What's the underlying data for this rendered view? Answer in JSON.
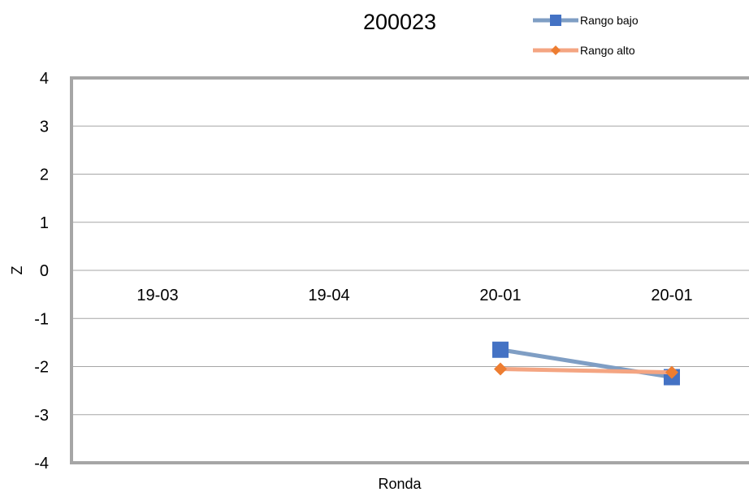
{
  "chart_data": {
    "type": "line",
    "title": "200023",
    "xlabel": "Ronda",
    "ylabel": "Z",
    "categories": [
      "19-03",
      "19-04",
      "20-01",
      "20-01"
    ],
    "ylim": [
      -4,
      4
    ],
    "yticks": [
      4,
      3,
      2,
      1,
      0,
      -1,
      -2,
      -3,
      -4
    ],
    "grid": true,
    "legend_position": "top-right",
    "series": [
      {
        "name": "Rango bajo",
        "values": [
          null,
          null,
          -1.65,
          -2.22
        ],
        "color": "#4472C4",
        "line_color": "#7F9EC4",
        "marker": "square"
      },
      {
        "name": "Rango alto",
        "values": [
          null,
          null,
          -2.05,
          -2.12
        ],
        "color": "#ED7D31",
        "line_color": "#F4A582",
        "marker": "diamond"
      }
    ]
  }
}
